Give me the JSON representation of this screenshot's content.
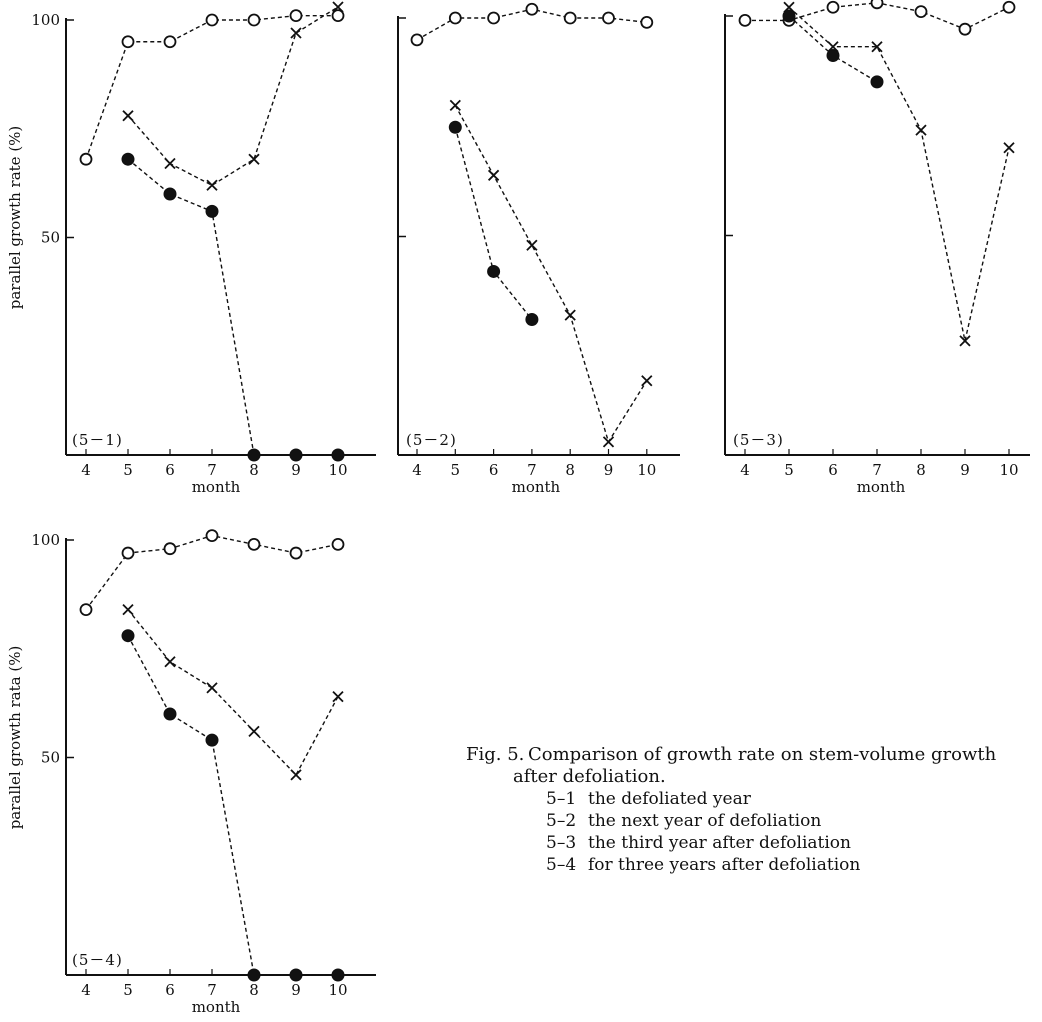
{
  "chart_data": [
    {
      "type": "line",
      "panel_label": "(5－1)",
      "xlabel": "month",
      "ylabel": "parallel growth rate (%)",
      "x": [
        4,
        5,
        6,
        7,
        8,
        9,
        10
      ],
      "xticks": [
        "4",
        "5",
        "6",
        "7",
        "8",
        "9",
        "10"
      ],
      "yticks": [
        "100",
        "50"
      ],
      "ylim": [
        0,
        100
      ],
      "series": [
        {
          "marker": "open-circle",
          "values": [
            68,
            95,
            95,
            100,
            100,
            101,
            101
          ]
        },
        {
          "marker": "cross",
          "values": [
            null,
            78,
            67,
            62,
            68,
            97,
            103
          ]
        },
        {
          "marker": "filled-circle",
          "values": [
            null,
            68,
            60,
            56,
            0,
            0,
            0
          ]
        }
      ]
    },
    {
      "type": "line",
      "panel_label": "(5－2)",
      "xlabel": "month",
      "ylabel": "",
      "x": [
        4,
        5,
        6,
        7,
        8,
        9,
        10
      ],
      "xticks": [
        "4",
        "5",
        "6",
        "7",
        "8",
        "9",
        "10"
      ],
      "yticks": [],
      "ylim": [
        0,
        100
      ],
      "series": [
        {
          "marker": "open-circle",
          "values": [
            95,
            100,
            100,
            102,
            100,
            100,
            99
          ]
        },
        {
          "marker": "cross",
          "values": [
            null,
            80,
            64,
            48,
            32,
            3,
            17
          ]
        },
        {
          "marker": "filled-circle",
          "values": [
            null,
            75,
            42,
            31,
            null,
            null,
            null
          ]
        }
      ]
    },
    {
      "type": "line",
      "panel_label": "(5－3)",
      "xlabel": "month",
      "ylabel": "",
      "x": [
        4,
        5,
        6,
        7,
        8,
        9,
        10
      ],
      "xticks": [
        "4",
        "5",
        "6",
        "7",
        "8",
        "9",
        "10"
      ],
      "yticks": [],
      "ylim": [
        0,
        100
      ],
      "series": [
        {
          "marker": "open-circle",
          "values": [
            99,
            99,
            102,
            103,
            101,
            97,
            102
          ]
        },
        {
          "marker": "cross",
          "values": [
            null,
            102,
            93,
            93,
            74,
            26,
            70
          ]
        },
        {
          "marker": "filled-circle",
          "values": [
            null,
            100,
            91,
            85,
            null,
            null,
            null
          ]
        }
      ]
    },
    {
      "type": "line",
      "panel_label": "(5－4)",
      "xlabel": "month",
      "ylabel": "parallel growth rata (%)",
      "x": [
        4,
        5,
        6,
        7,
        8,
        9,
        10
      ],
      "xticks": [
        "4",
        "5",
        "6",
        "7",
        "8",
        "9",
        "10"
      ],
      "yticks": [
        "100",
        "50"
      ],
      "ylim": [
        0,
        100
      ],
      "series": [
        {
          "marker": "open-circle",
          "values": [
            84,
            97,
            98,
            101,
            99,
            97,
            99
          ]
        },
        {
          "marker": "cross",
          "values": [
            null,
            84,
            72,
            66,
            56,
            46,
            64
          ]
        },
        {
          "marker": "filled-circle",
          "values": [
            null,
            78,
            60,
            54,
            0,
            0,
            0
          ]
        }
      ]
    }
  ],
  "caption": {
    "fig_number": "Fig. 5.",
    "line1": "Comparison of growth rate on stem-volume growth",
    "line2": "after defoliation.",
    "items": [
      {
        "key": "5–1",
        "text": "the defoliated year"
      },
      {
        "key": "5–2",
        "text": "the next year of defoliation"
      },
      {
        "key": "5–3",
        "text": "the third year after defoliation"
      },
      {
        "key": "5–4",
        "text": "for three years after defoliation"
      }
    ]
  }
}
